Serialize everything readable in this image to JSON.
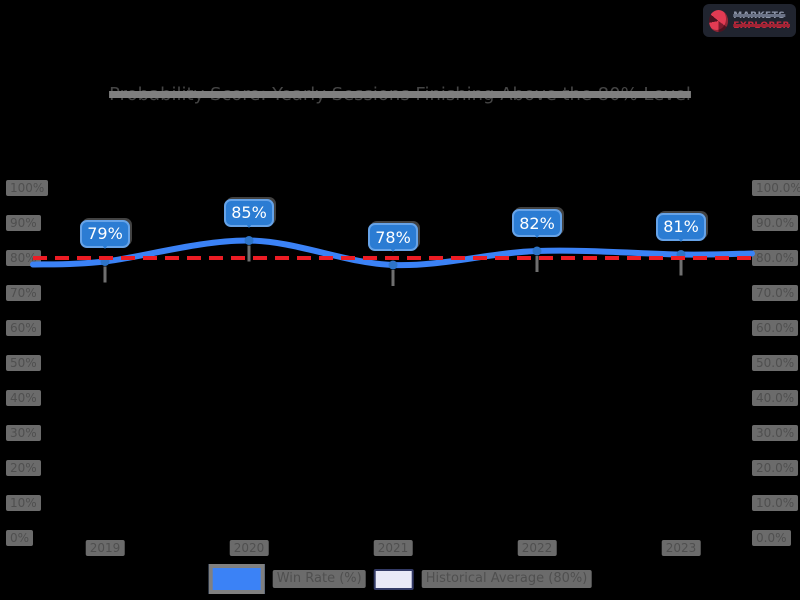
{
  "page": {
    "background": "#000000"
  },
  "logo": {
    "line1": "MARKETS",
    "line2": "EXPLORER",
    "icon": "pie-chart-logo-icon",
    "accent": "#e23b53",
    "box_color": "#20242f"
  },
  "title": {
    "text": "Probability Score: Yearly Sessions Finishing Above the 80% Level",
    "redacted": true
  },
  "redaction_note": "Title, axis tick labels, x-axis labels and legend text are visually obscured (struck-through gray blocks) in the screenshot; only the blue data labels are legible.",
  "chart_data": {
    "type": "line",
    "categories": [
      "2019",
      "2020",
      "2021",
      "2022",
      "2023"
    ],
    "categories_redacted": true,
    "series": [
      {
        "name": "Win Rate (%)",
        "values": [
          79,
          85,
          78,
          82,
          81
        ],
        "color": "#3b82f6"
      }
    ],
    "data_labels": [
      "79%",
      "85%",
      "78%",
      "82%",
      "81%"
    ],
    "reference_line": {
      "value": 80,
      "color": "#ed1c24",
      "style": "dashed",
      "name": "Historical Average (80%)"
    },
    "ylim": [
      0,
      100
    ],
    "yticks_left": [
      "100%",
      "90%",
      "80%",
      "70%",
      "60%",
      "50%",
      "40%",
      "30%",
      "20%",
      "10%",
      "0%"
    ],
    "yticks_right": [
      "100.0%",
      "90.0%",
      "80.0%",
      "70.0%",
      "60.0%",
      "50.0%",
      "40.0%",
      "30.0%",
      "20.0%",
      "10.0%",
      "0.0%"
    ],
    "legend": [
      {
        "label": "Win Rate (%)",
        "swatch_color": "#3b82f6"
      },
      {
        "label": "Historical Average (80%)",
        "swatch_color": "#e9e9f7"
      }
    ],
    "legend_position": "bottom",
    "grid": false,
    "background": "#000000",
    "line_color": "#3b82f6",
    "label_box_color": "#2b7cd3"
  }
}
